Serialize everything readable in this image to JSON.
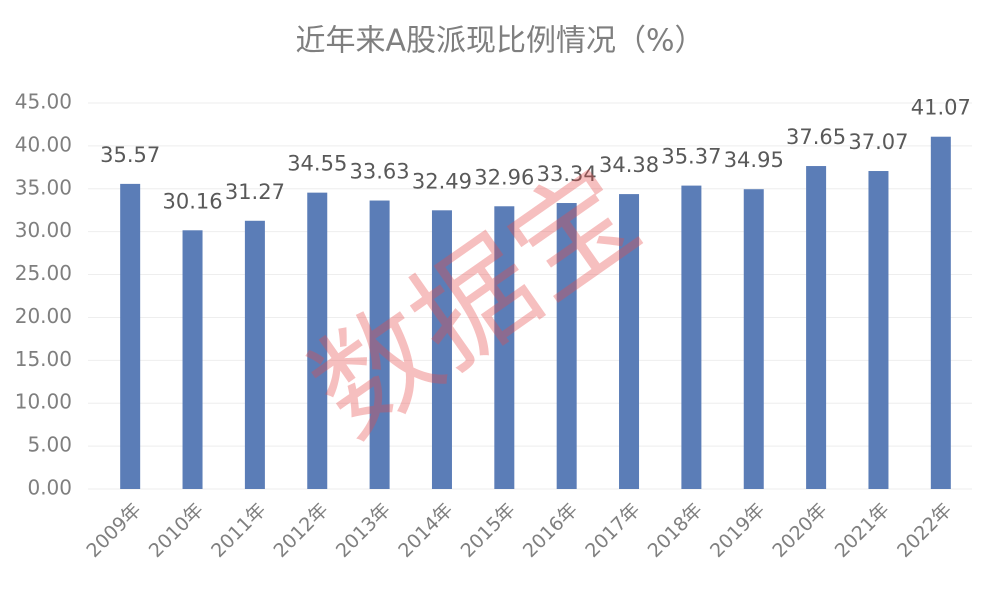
{
  "chart_data": {
    "type": "bar",
    "title": "近年来A股派现比例情况（%）",
    "categories": [
      "2009年",
      "2010年",
      "2011年",
      "2012年",
      "2013年",
      "2014年",
      "2015年",
      "2016年",
      "2017年",
      "2018年",
      "2019年",
      "2020年",
      "2021年",
      "2022年"
    ],
    "values": [
      35.57,
      30.16,
      31.27,
      34.55,
      33.63,
      32.49,
      32.96,
      33.34,
      34.38,
      35.37,
      34.95,
      37.65,
      37.07,
      41.07
    ],
    "color": "#5b7db7",
    "ylim": [
      0,
      45
    ],
    "yticks": [
      {
        "value": 0,
        "label": "0.00"
      },
      {
        "value": 5,
        "label": "5.00"
      },
      {
        "value": 10,
        "label": "10.00"
      },
      {
        "value": 15,
        "label": "15.00"
      },
      {
        "value": 20,
        "label": "20.00"
      },
      {
        "value": 25,
        "label": "25.00"
      },
      {
        "value": 30,
        "label": "30.00"
      },
      {
        "value": 35,
        "label": "35.00"
      },
      {
        "value": 40,
        "label": "40.00"
      },
      {
        "value": 45,
        "label": "45.00"
      }
    ],
    "grid": true
  },
  "watermark": "数据宝"
}
